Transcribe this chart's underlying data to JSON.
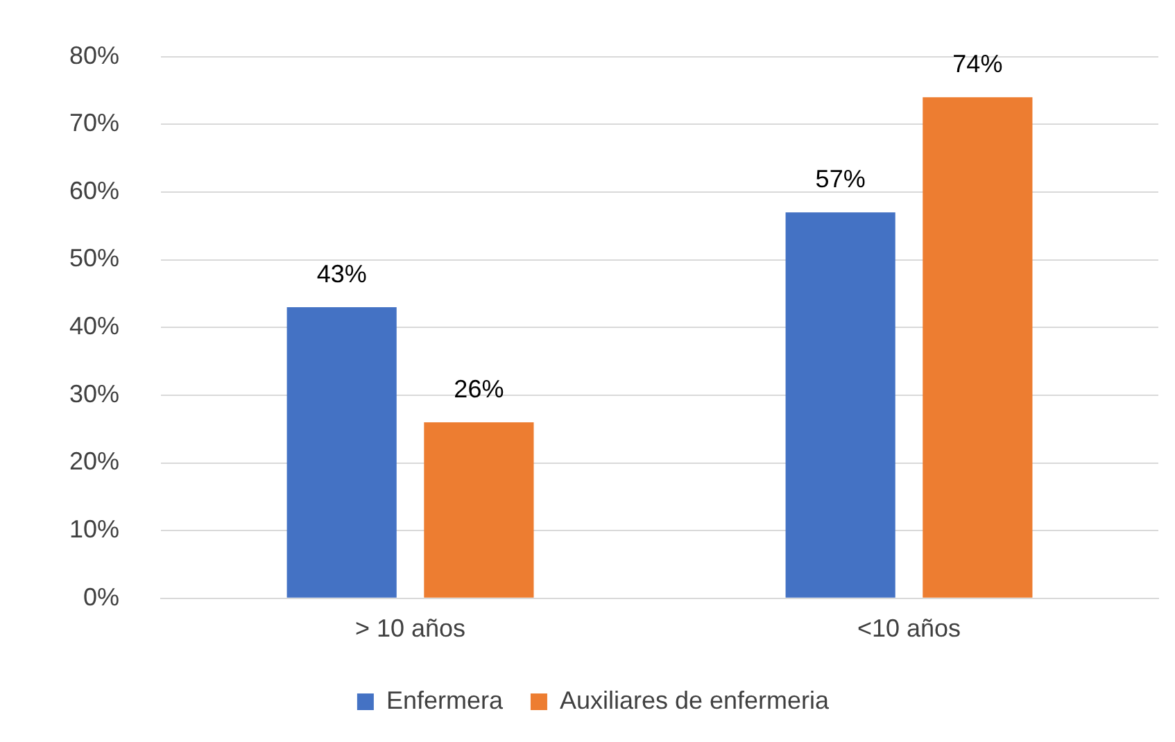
{
  "chart_data": {
    "type": "bar",
    "categories": [
      "> 10 años",
      "<10 años"
    ],
    "series": [
      {
        "name": "Enfermera",
        "color": "#4472c4",
        "values": [
          43,
          57
        ],
        "value_labels": [
          "43%",
          "57%"
        ]
      },
      {
        "name": "Auxiliares de enfermeria",
        "color": "#ed7d31",
        "values": [
          26,
          74
        ],
        "value_labels": [
          "26%",
          "74%"
        ]
      }
    ],
    "ylim": [
      0,
      80
    ],
    "yticks": [
      {
        "value": 0,
        "label": "0%"
      },
      {
        "value": 10,
        "label": "10%"
      },
      {
        "value": 20,
        "label": "20%"
      },
      {
        "value": 30,
        "label": "30%"
      },
      {
        "value": 40,
        "label": "40%"
      },
      {
        "value": 50,
        "label": "50%"
      },
      {
        "value": 60,
        "label": "60%"
      },
      {
        "value": 70,
        "label": "70%"
      },
      {
        "value": 80,
        "label": "80%"
      }
    ],
    "grid": "y",
    "legend": "bottom"
  }
}
